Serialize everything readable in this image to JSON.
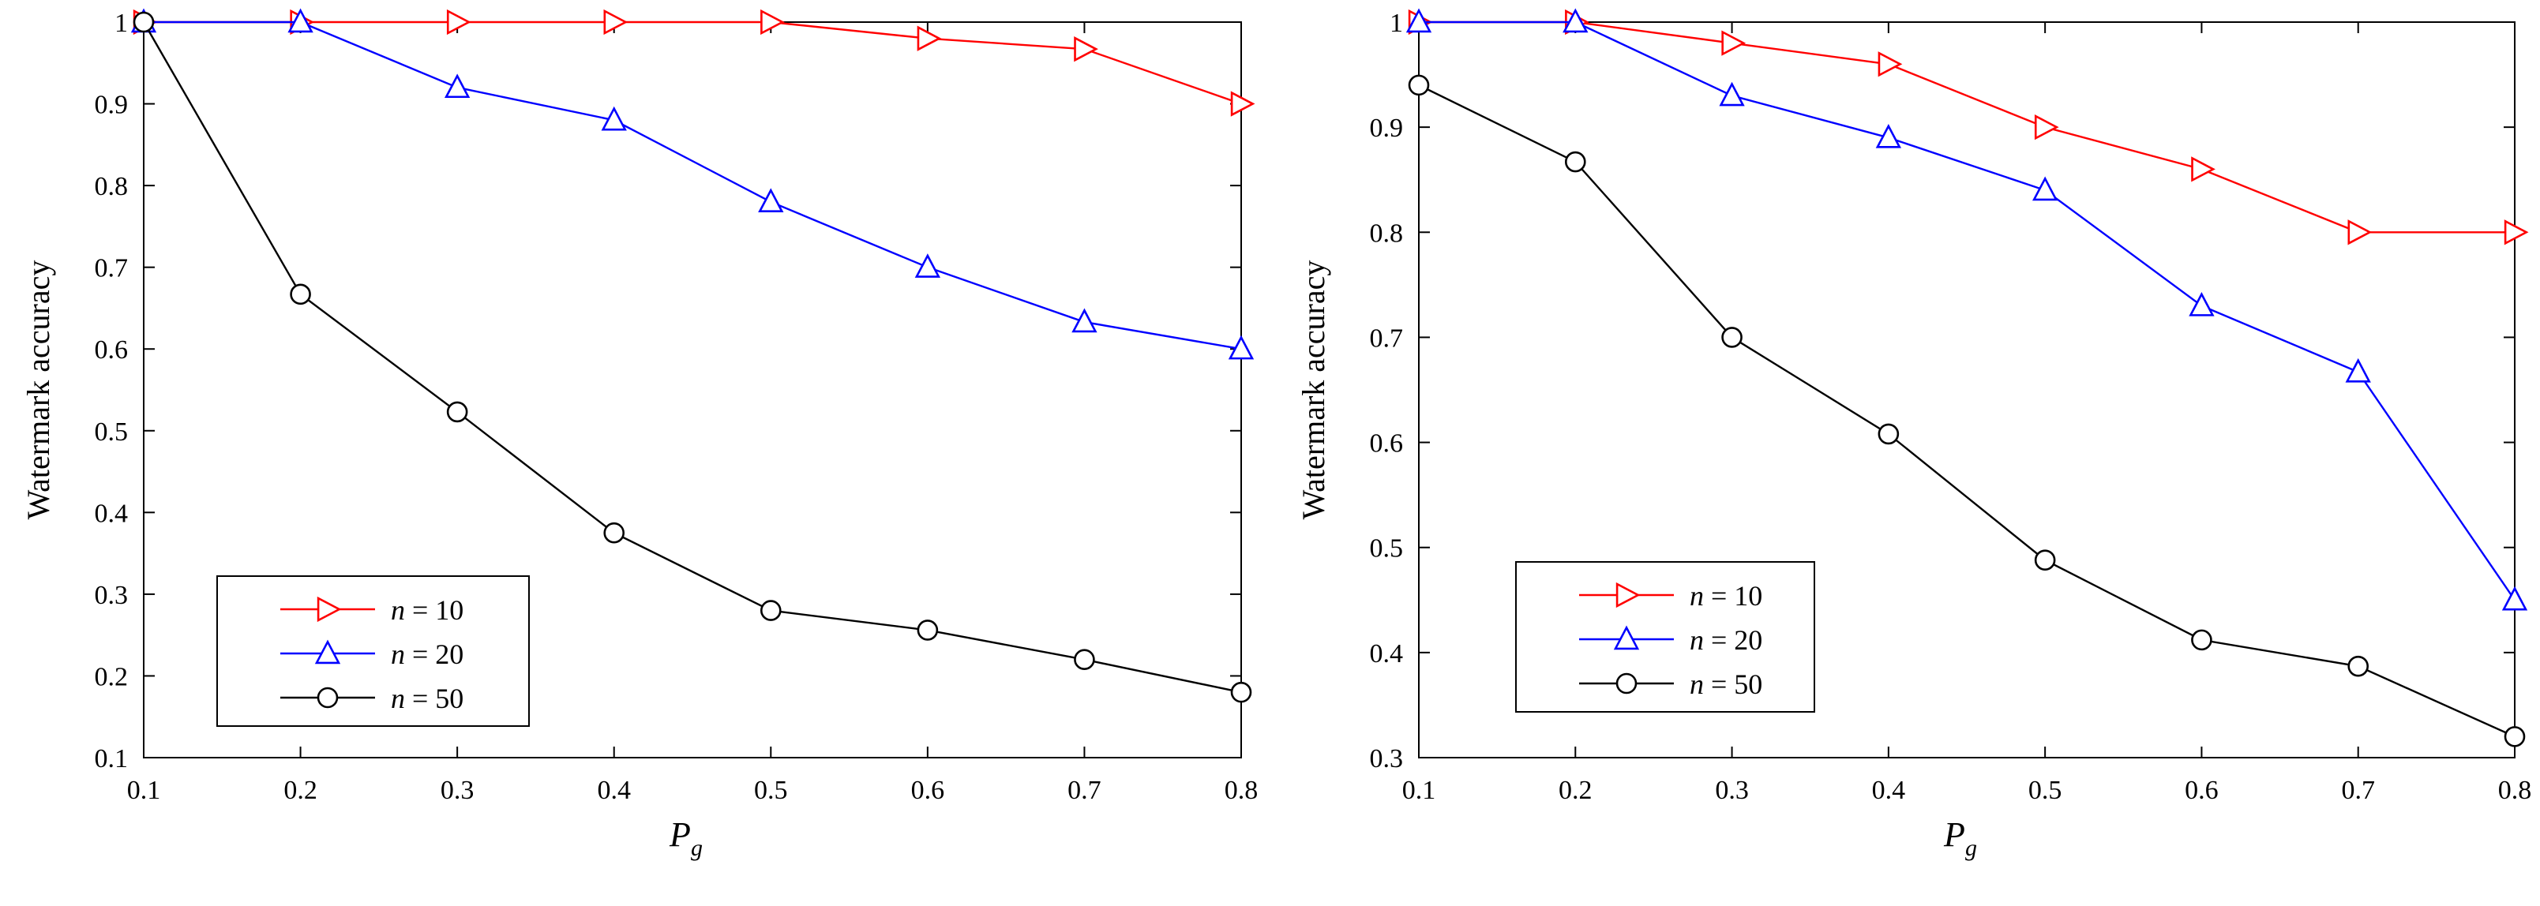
{
  "chart_data": [
    {
      "type": "line",
      "xlabel": "P",
      "xlabel_sub": "g",
      "ylabel": "Watermark accuracy",
      "xlim": [
        0.1,
        0.8
      ],
      "ylim": [
        0.1,
        1
      ],
      "xticks": [
        0.1,
        0.2,
        0.3,
        0.4,
        0.5,
        0.6,
        0.7,
        0.8
      ],
      "yticks": [
        0.1,
        0.2,
        0.3,
        0.4,
        0.5,
        0.6,
        0.7,
        0.8,
        0.9,
        1
      ],
      "xtick_labels": [
        "0.1",
        "0.2",
        "0.3",
        "0.4",
        "0.5",
        "0.6",
        "0.7",
        "0.8"
      ],
      "ytick_labels": [
        "0.1",
        "0.2",
        "0.3",
        "0.4",
        "0.5",
        "0.6",
        "0.7",
        "0.8",
        "0.9",
        "1"
      ],
      "grid": false,
      "legend_position": "bottom-left",
      "x": [
        0.1,
        0.2,
        0.3,
        0.4,
        0.5,
        0.6,
        0.7,
        0.8
      ],
      "series": [
        {
          "name": "n = 10",
          "var": "n",
          "value_label": "= 10",
          "color": "#ff0000",
          "marker": "triangle-right",
          "values": [
            1.0,
            1.0,
            1.0,
            1.0,
            1.0,
            0.98,
            0.967,
            0.9
          ]
        },
        {
          "name": "n = 20",
          "var": "n",
          "value_label": "= 20",
          "color": "#0000ff",
          "marker": "triangle-up",
          "values": [
            1.0,
            1.0,
            0.92,
            0.88,
            0.78,
            0.7,
            0.633,
            0.6
          ]
        },
        {
          "name": "n = 50",
          "var": "n",
          "value_label": "= 50",
          "color": "#000000",
          "marker": "circle",
          "values": [
            1.0,
            0.667,
            0.523,
            0.375,
            0.28,
            0.256,
            0.22,
            0.18
          ]
        }
      ]
    },
    {
      "type": "line",
      "xlabel": "P",
      "xlabel_sub": "g",
      "ylabel": "Watermark accuracy",
      "xlim": [
        0.1,
        0.8
      ],
      "ylim": [
        0.3,
        1
      ],
      "xticks": [
        0.1,
        0.2,
        0.3,
        0.4,
        0.5,
        0.6,
        0.7,
        0.8
      ],
      "yticks": [
        0.3,
        0.4,
        0.5,
        0.6,
        0.7,
        0.8,
        0.9,
        1
      ],
      "xtick_labels": [
        "0.1",
        "0.2",
        "0.3",
        "0.4",
        "0.5",
        "0.6",
        "0.7",
        "0.8"
      ],
      "ytick_labels": [
        "0.3",
        "0.4",
        "0.5",
        "0.6",
        "0.7",
        "0.8",
        "0.9",
        "1"
      ],
      "grid": false,
      "legend_position": "bottom-left",
      "x": [
        0.1,
        0.2,
        0.3,
        0.4,
        0.5,
        0.6,
        0.7,
        0.8
      ],
      "series": [
        {
          "name": "n = 10",
          "var": "n",
          "value_label": "= 10",
          "color": "#ff0000",
          "marker": "triangle-right",
          "values": [
            1.0,
            1.0,
            0.98,
            0.96,
            0.9,
            0.86,
            0.8,
            0.8
          ]
        },
        {
          "name": "n = 20",
          "var": "n",
          "value_label": "= 20",
          "color": "#0000ff",
          "marker": "triangle-up",
          "values": [
            1.0,
            1.0,
            0.93,
            0.89,
            0.84,
            0.73,
            0.667,
            0.45
          ]
        },
        {
          "name": "n = 50",
          "var": "n",
          "value_label": "= 50",
          "color": "#000000",
          "marker": "circle",
          "values": [
            0.94,
            0.867,
            0.7,
            0.608,
            0.488,
            0.412,
            0.387,
            0.32
          ]
        }
      ]
    }
  ]
}
